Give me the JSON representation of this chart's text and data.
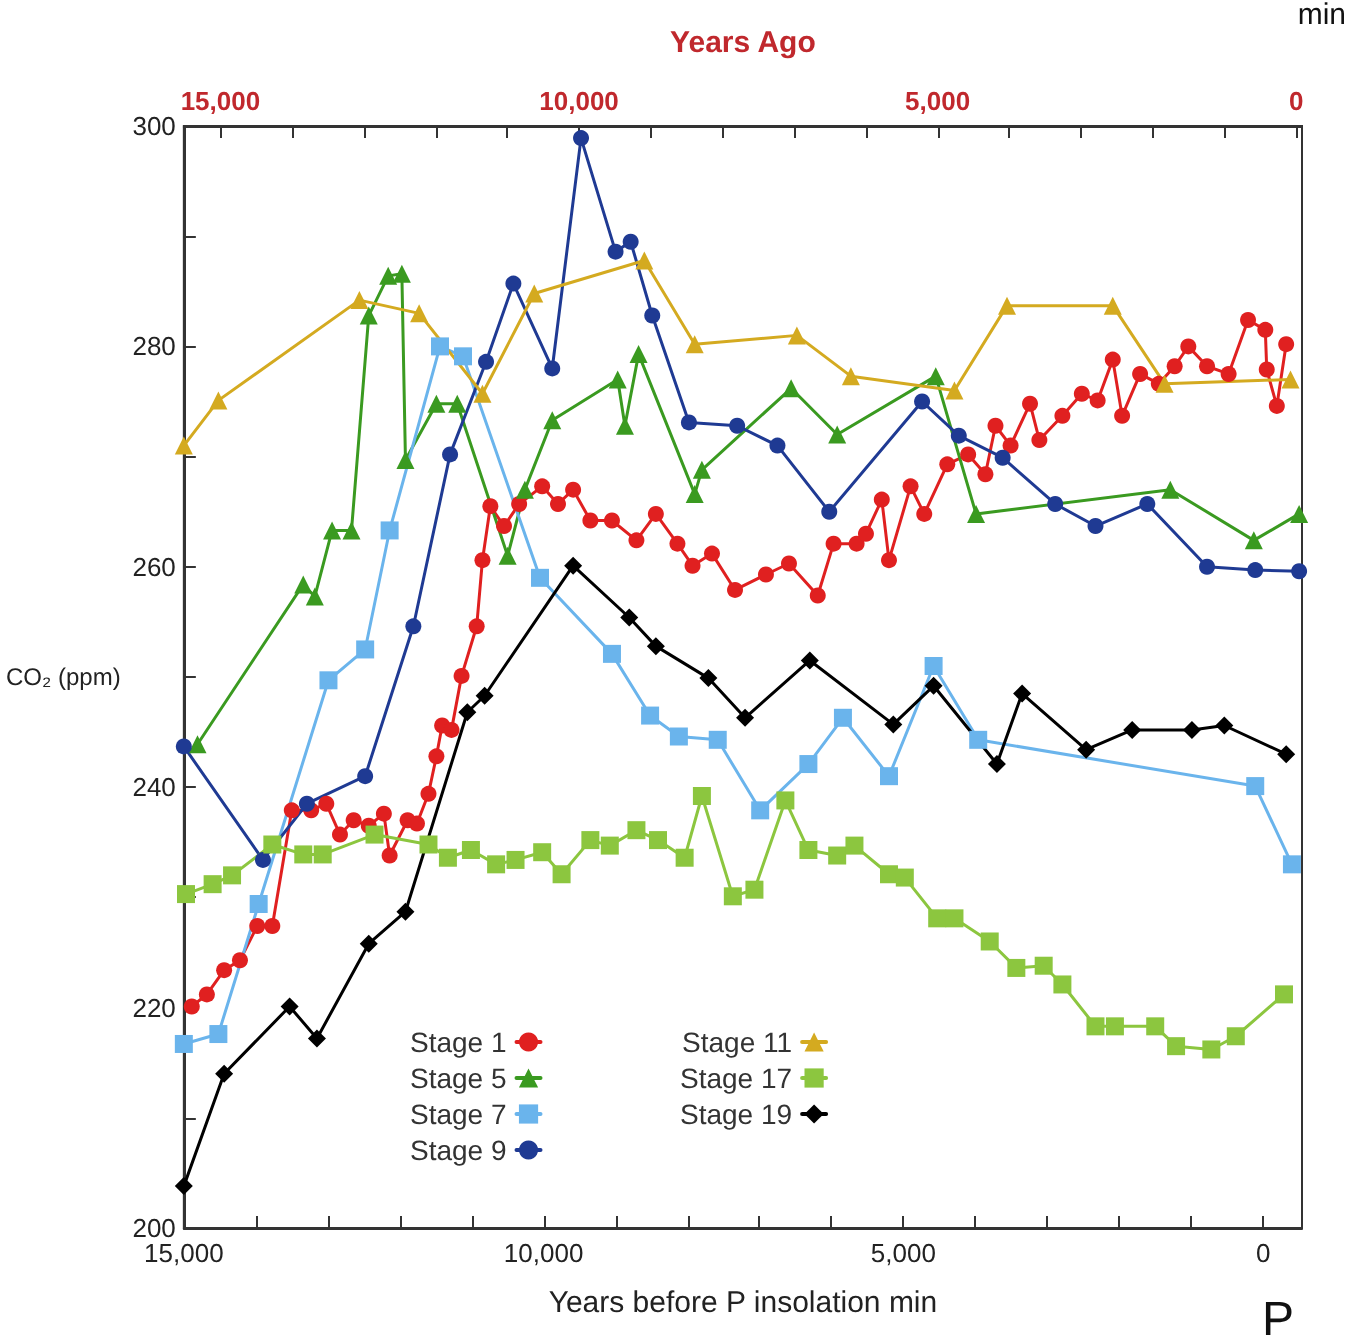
{
  "chart_data": {
    "type": "line",
    "xlabel": "Years before P insolation min",
    "ylabel": "CO₂ (ppm)",
    "x2label": "Years Ago",
    "annotations": [
      "min",
      "P"
    ],
    "xlim": [
      15000,
      -540
    ],
    "x2lim": [
      15510,
      -80
    ],
    "ylim": [
      200,
      300
    ],
    "xticks": [
      {
        "value": 15000,
        "label": "15,000"
      },
      {
        "value": 14000,
        "label": null
      },
      {
        "value": 13000,
        "label": null
      },
      {
        "value": 12000,
        "label": null
      },
      {
        "value": 11000,
        "label": null
      },
      {
        "value": 10000,
        "label": "10,000"
      },
      {
        "value": 9000,
        "label": null
      },
      {
        "value": 8000,
        "label": null
      },
      {
        "value": 7000,
        "label": null
      },
      {
        "value": 6000,
        "label": null
      },
      {
        "value": 5000,
        "label": "5,000"
      },
      {
        "value": 4000,
        "label": null
      },
      {
        "value": 3000,
        "label": null
      },
      {
        "value": 2000,
        "label": null
      },
      {
        "value": 1000,
        "label": null
      },
      {
        "value": 0,
        "label": "0"
      }
    ],
    "x2ticks": [
      {
        "value": 15000,
        "label": "15,000"
      },
      {
        "value": 14000,
        "label": null
      },
      {
        "value": 13000,
        "label": null
      },
      {
        "value": 12000,
        "label": null
      },
      {
        "value": 11000,
        "label": null
      },
      {
        "value": 10000,
        "label": "10,000"
      },
      {
        "value": 9000,
        "label": null
      },
      {
        "value": 8000,
        "label": null
      },
      {
        "value": 7000,
        "label": null
      },
      {
        "value": 6000,
        "label": null
      },
      {
        "value": 5000,
        "label": "5,000"
      },
      {
        "value": 4000,
        "label": null
      },
      {
        "value": 3000,
        "label": null
      },
      {
        "value": 2000,
        "label": null
      },
      {
        "value": 1000,
        "label": null
      },
      {
        "value": 0,
        "label": "0"
      }
    ],
    "yticks": [
      200,
      {
        "value": 210,
        "label": null
      },
      220,
      {
        "value": 230,
        "label": null
      },
      240,
      {
        "value": 250,
        "label": null
      },
      260,
      {
        "value": 270,
        "label": null
      },
      280,
      {
        "value": 290,
        "label": null
      },
      300
    ],
    "grid": false,
    "legend": "bottom",
    "line_style": "solid",
    "series": [
      {
        "name": "Stage 1",
        "color": "#e02020",
        "marker": "circle",
        "x": [
          14890,
          14680,
          14440,
          14220,
          13980,
          13770,
          13500,
          13230,
          13020,
          12830,
          12640,
          12430,
          12220,
          12140,
          11890,
          11760,
          11600,
          11490,
          11410,
          11280,
          11140,
          10930,
          10850,
          10740,
          10550,
          10340,
          10020,
          9800,
          9590,
          9350,
          9050,
          8710,
          8440,
          8140,
          7930,
          7660,
          7340,
          6910,
          6590,
          6190,
          5970,
          5650,
          5520,
          5300,
          5200,
          4900,
          4710,
          4390,
          4100,
          3860,
          3720,
          3510,
          3240,
          3110,
          2790,
          2520,
          2300,
          2090,
          1960,
          1710,
          1450,
          1230,
          1040,
          780,
          480,
          210,
          -30,
          -50,
          -190,
          -320
        ],
        "values": [
          220.1,
          221.2,
          223.4,
          224.3,
          227.4,
          227.4,
          237.9,
          237.9,
          238.5,
          235.7,
          237,
          236.5,
          237.6,
          233.8,
          237,
          236.7,
          239.4,
          242.8,
          245.6,
          245.2,
          250.1,
          254.6,
          260.6,
          265.5,
          263.7,
          265.7,
          267.3,
          265.7,
          267,
          264.2,
          264.2,
          262.4,
          264.8,
          262.1,
          260.1,
          261.2,
          257.9,
          259.3,
          260.3,
          257.4,
          262.1,
          262.1,
          263,
          266.1,
          260.6,
          267.3,
          264.8,
          269.3,
          270.2,
          268.4,
          272.8,
          271,
          274.8,
          271.5,
          273.7,
          275.7,
          275.1,
          278.8,
          273.7,
          277.5,
          276.6,
          278.2,
          280,
          278.2,
          277.5,
          282.4,
          281.5,
          277.9,
          274.6,
          280.2
        ]
      },
      {
        "name": "Stage 5",
        "color": "#3a9a20",
        "marker": "triangle",
        "x": [
          14810,
          13340,
          13180,
          12940,
          12670,
          12430,
          12160,
          11970,
          11920,
          11490,
          11200,
          10500,
          10260,
          9880,
          8970,
          8870,
          8680,
          7900,
          7800,
          6560,
          5920,
          4550,
          3990,
          1290,
          130,
          -500
        ],
        "values": [
          243.9,
          258.4,
          257.3,
          263.3,
          263.3,
          282.8,
          286.4,
          286.6,
          269.7,
          274.8,
          274.8,
          261,
          267,
          273.3,
          277,
          272.8,
          279.3,
          266.6,
          268.8,
          276.2,
          272,
          277.3,
          264.8,
          267,
          262.4,
          264.8
        ]
      },
      {
        "name": "Stage 7",
        "color": "#6ab4ec",
        "marker": "square",
        "x": [
          15000,
          14520,
          13960,
          12990,
          12480,
          12140,
          11440,
          11120,
          10050,
          9050,
          8520,
          8120,
          7580,
          6990,
          6320,
          5840,
          5200,
          4580,
          3960,
          110,
          -400
        ],
        "values": [
          216.7,
          217.6,
          229.4,
          249.7,
          252.5,
          263.3,
          280,
          279.1,
          259,
          252.1,
          246.5,
          244.6,
          244.3,
          237.9,
          242.1,
          246.3,
          241,
          251,
          244.3,
          240.1,
          233
        ]
      },
      {
        "name": "Stage 9",
        "color": "#1f3a93",
        "marker": "circle",
        "x": [
          15000,
          13900,
          13290,
          12480,
          11810,
          11300,
          10800,
          10420,
          9880,
          9480,
          9000,
          8790,
          8490,
          7980,
          7310,
          6750,
          6030,
          4740,
          4230,
          3620,
          2890,
          2330,
          1610,
          780,
          110,
          -500
        ],
        "values": [
          243.7,
          233.4,
          238.5,
          241,
          254.6,
          270.2,
          278.6,
          285.7,
          278,
          298.9,
          288.6,
          289.5,
          282.8,
          273.1,
          272.8,
          271,
          265,
          275,
          271.9,
          269.9,
          265.7,
          263.7,
          265.7,
          260,
          259.7,
          259.6
        ]
      },
      {
        "name": "Stage 11",
        "color": "#d4aa20",
        "marker": "triangle",
        "x": [
          15000,
          14520,
          12560,
          11730,
          10850,
          10130,
          8600,
          7900,
          6480,
          5730,
          4290,
          3560,
          2090,
          1370,
          -380
        ],
        "values": [
          271,
          275.1,
          284.2,
          283,
          275.7,
          284.8,
          287.8,
          280.2,
          281,
          277.3,
          276,
          283.7,
          283.7,
          276.6,
          277
        ]
      },
      {
        "name": "Stage 17",
        "color": "#8cc63f",
        "marker": "square",
        "x": [
          14970,
          14600,
          14330,
          13770,
          13340,
          13070,
          12350,
          11600,
          11330,
          11010,
          10660,
          10390,
          10020,
          9750,
          9350,
          9080,
          8710,
          8410,
          8040,
          7800,
          7370,
          7070,
          6640,
          6320,
          5920,
          5680,
          5200,
          4980,
          4530,
          4290,
          3800,
          3430,
          3050,
          2790,
          2330,
          2060,
          1500,
          1210,
          720,
          380,
          -290
        ],
        "values": [
          230.3,
          231.2,
          232,
          234.8,
          233.9,
          233.9,
          235.7,
          234.8,
          233.6,
          234.3,
          233,
          233.4,
          234.1,
          232.1,
          235.2,
          234.7,
          236.1,
          235.2,
          233.6,
          239.2,
          230.1,
          230.7,
          238.8,
          234.3,
          233.8,
          234.7,
          232.1,
          231.8,
          228.1,
          228.1,
          226,
          223.6,
          223.8,
          222.1,
          218.3,
          218.3,
          218.3,
          216.5,
          216.2,
          217.4,
          221.2
        ]
      },
      {
        "name": "Stage 19",
        "color": "#000000",
        "marker": "diamond",
        "x": [
          15000,
          14440,
          13530,
          13150,
          12430,
          11920,
          11060,
          10820,
          9590,
          8810,
          8440,
          7710,
          7200,
          6300,
          5140,
          4580,
          3700,
          3350,
          2460,
          1820,
          990,
          540,
          -320
        ],
        "values": [
          203.8,
          214,
          220.1,
          217.2,
          225.8,
          228.7,
          246.8,
          248.3,
          260.1,
          255.4,
          252.8,
          249.9,
          246.3,
          251.5,
          245.7,
          249.2,
          242.1,
          248.5,
          243.4,
          245.2,
          245.2,
          245.6,
          243
        ]
      }
    ]
  }
}
